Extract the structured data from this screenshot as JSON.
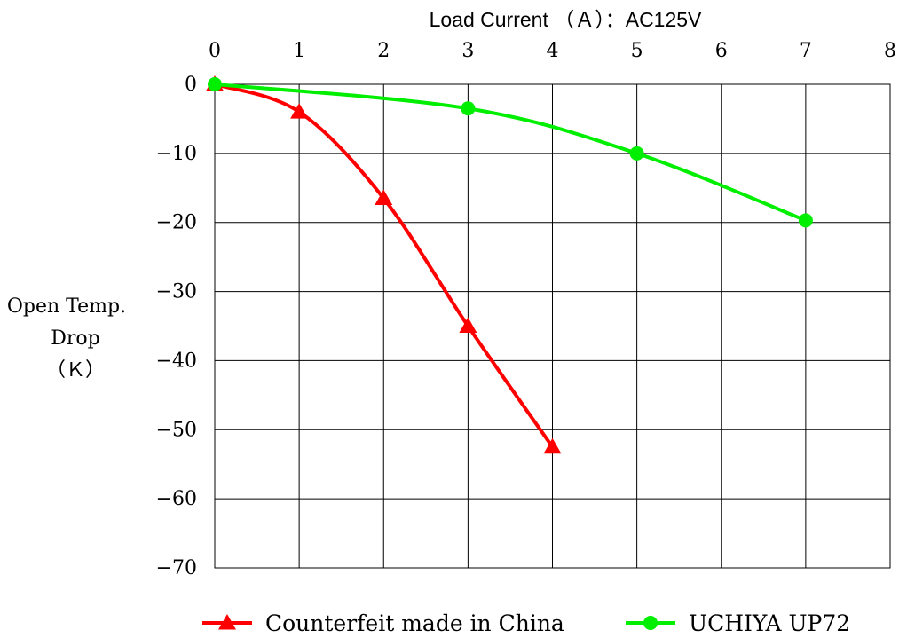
{
  "chart_data": {
    "type": "line",
    "xlabel": "Load Current （Ａ）：AC125V",
    "ylabel_lines": [
      "Open Temp.",
      "Drop",
      "（Ｋ）"
    ],
    "xlim": [
      0,
      8
    ],
    "ylim": [
      -70,
      0
    ],
    "x_ticks": [
      "0",
      "1",
      "2",
      "3",
      "4",
      "5",
      "6",
      "7",
      "8"
    ],
    "y_ticks": [
      "0",
      "−10",
      "−20",
      "−30",
      "−40",
      "−50",
      "−60",
      "−70"
    ],
    "grid": true,
    "legend_position": "bottom",
    "series": [
      {
        "name": "Counterfeit made in China",
        "color": "#ff0000",
        "marker": "triangle",
        "x": [
          0,
          1,
          2,
          3,
          4
        ],
        "y": [
          0,
          -4,
          -16.5,
          -35,
          -52.5
        ]
      },
      {
        "name": "UCHIYA UP72",
        "color": "#00ee00",
        "marker": "circle",
        "x": [
          0,
          3,
          5,
          7
        ],
        "y": [
          0,
          -3.5,
          -10,
          -19.7
        ]
      }
    ]
  }
}
